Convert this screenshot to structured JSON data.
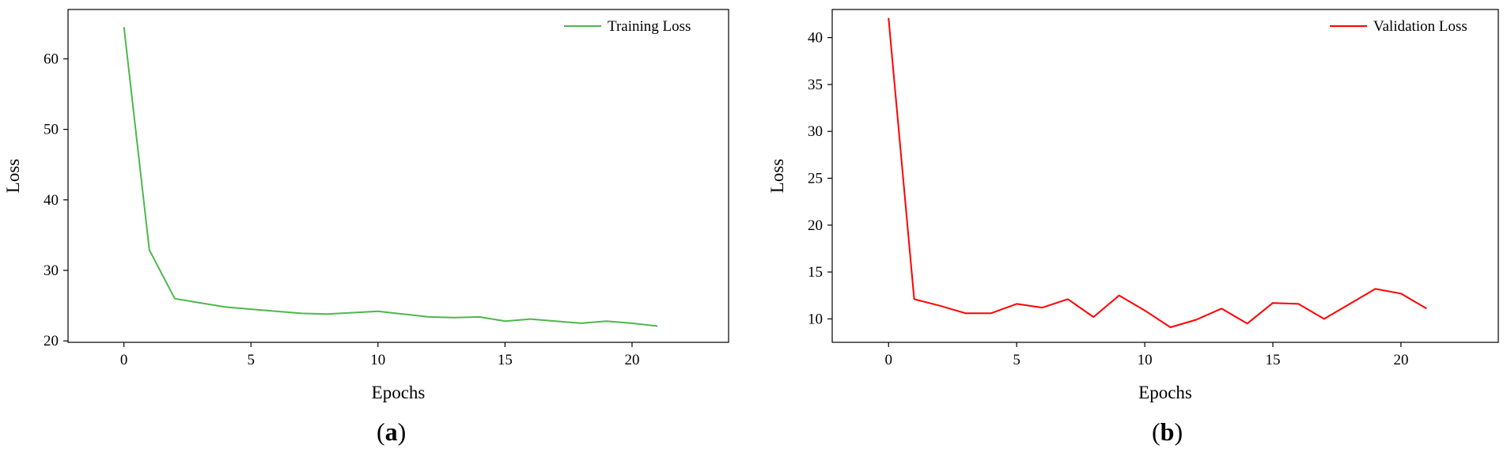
{
  "figure": {
    "panels": [
      {
        "label_open": "(",
        "label_letter": "a",
        "label_close": ")"
      },
      {
        "label_open": "(",
        "label_letter": "b",
        "label_close": ")"
      }
    ]
  },
  "chart_data": [
    {
      "type": "line",
      "xlabel": "Epochs",
      "ylabel": "Loss",
      "xlim": [
        -2.2,
        23.8
      ],
      "ylim": [
        19.8,
        67
      ],
      "xticks": [
        0,
        5,
        10,
        15,
        20
      ],
      "yticks": [
        20,
        30,
        40,
        50,
        60
      ],
      "grid": false,
      "legend_position": "top-right",
      "series": [
        {
          "name": "Training Loss",
          "color": "#4cb84c",
          "x": [
            0,
            1,
            2,
            3,
            4,
            5,
            6,
            7,
            8,
            9,
            10,
            11,
            12,
            13,
            14,
            15,
            16,
            17,
            18,
            19,
            20,
            21
          ],
          "y": [
            64.5,
            32.9,
            26.0,
            25.4,
            24.8,
            24.5,
            24.2,
            23.9,
            23.8,
            24.0,
            24.2,
            23.8,
            23.4,
            23.3,
            23.4,
            22.8,
            23.1,
            22.8,
            22.5,
            22.8,
            22.5,
            22.1
          ]
        }
      ]
    },
    {
      "type": "line",
      "xlabel": "Epochs",
      "ylabel": "Loss",
      "xlim": [
        -2.2,
        23.8
      ],
      "ylim": [
        7.5,
        43
      ],
      "xticks": [
        0,
        5,
        10,
        15,
        20
      ],
      "yticks": [
        10,
        15,
        20,
        25,
        30,
        35,
        40
      ],
      "grid": false,
      "legend_position": "top-right",
      "series": [
        {
          "name": "Validation Loss",
          "color": "#ff0000",
          "x": [
            0,
            1,
            2,
            3,
            4,
            5,
            6,
            7,
            8,
            9,
            10,
            11,
            12,
            13,
            14,
            15,
            16,
            17,
            18,
            19,
            20,
            21
          ],
          "y": [
            42.1,
            12.1,
            11.4,
            10.6,
            10.6,
            11.6,
            11.2,
            12.1,
            10.2,
            12.5,
            10.9,
            9.1,
            9.9,
            11.1,
            9.5,
            11.7,
            11.6,
            10.0,
            11.6,
            13.2,
            12.7,
            11.1
          ]
        }
      ]
    }
  ]
}
